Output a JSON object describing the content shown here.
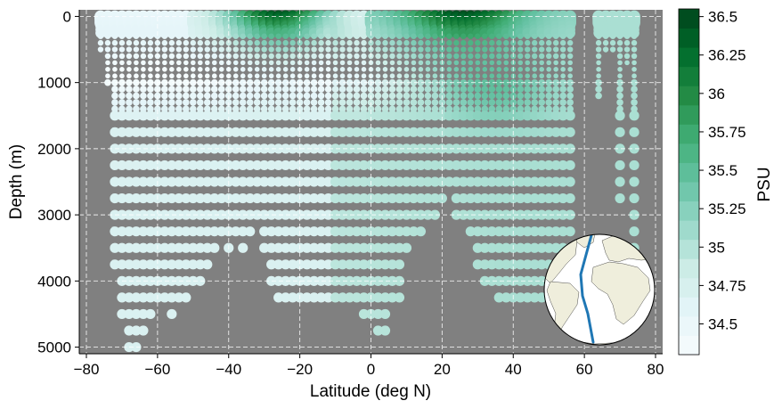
{
  "chart_data": {
    "type": "scatter",
    "title": "",
    "xlabel": "Latitude (deg N)",
    "ylabel": "Depth (m)",
    "xlim": [
      -82,
      82
    ],
    "ylim": [
      5100,
      -100
    ],
    "y_inverted": true,
    "grid": true,
    "grid_style": "dashed white",
    "background_color": "#808080",
    "xticks": [
      -80,
      -60,
      -40,
      -20,
      0,
      20,
      40,
      60,
      80
    ],
    "xtick_labels": [
      "−80",
      "−60",
      "−40",
      "−20",
      "0",
      "20",
      "40",
      "60",
      "80"
    ],
    "yticks": [
      0,
      1000,
      2000,
      3000,
      4000,
      5000
    ],
    "ytick_labels": [
      "0",
      "1000",
      "2000",
      "3000",
      "4000",
      "5000"
    ],
    "colorbar": {
      "label": "PSU",
      "vmin": 34.3,
      "vmax": 36.55,
      "ticks": [
        34.5,
        34.75,
        35,
        35.25,
        35.5,
        35.75,
        36,
        36.25,
        36.5
      ],
      "tick_labels": [
        "34.5",
        "34.75",
        "35",
        "35.25",
        "35.5",
        "35.75",
        "36",
        "36.25",
        "36.5"
      ],
      "colormap": [
        "#f7fcfd",
        "#e5f5f9",
        "#ccece6",
        "#99d8c9",
        "#66c2a4",
        "#41ae76",
        "#238b45",
        "#006d2c",
        "#00441b"
      ]
    },
    "depth_levels": [
      0,
      10,
      20,
      30,
      50,
      75,
      100,
      125,
      150,
      200,
      250,
      300,
      400,
      500,
      600,
      700,
      800,
      900,
      1000,
      1100,
      1200,
      1300,
      1400,
      1500,
      1750,
      2000,
      2250,
      2500,
      2750,
      3000,
      3250,
      3500,
      3750,
      4000,
      4250,
      4500,
      4750,
      5000
    ],
    "latitude_spacing_deg": 2,
    "profiles": [
      {
        "lat": -76,
        "max_depth": 500
      },
      {
        "lat": -74,
        "max_depth": 1000
      },
      {
        "lat": -72,
        "max_depth": 3750
      },
      {
        "lat": -70,
        "max_depth": 4500
      },
      {
        "lat": -68,
        "max_depth": 5000
      },
      {
        "lat": -66,
        "max_depth": 5000
      },
      {
        "lat": -64,
        "max_depth": 4750
      },
      {
        "lat": -62,
        "max_depth": 4500
      },
      {
        "lat": -60,
        "max_depth": 4250
      },
      {
        "lat": -58,
        "max_depth": 4250
      },
      {
        "lat": -56,
        "max_depth": 4500
      },
      {
        "lat": -54,
        "max_depth": 4250
      },
      {
        "lat": -52,
        "max_depth": 4250
      },
      {
        "lat": -50,
        "max_depth": 4000
      },
      {
        "lat": -48,
        "max_depth": 4000
      },
      {
        "lat": -46,
        "max_depth": 3750
      },
      {
        "lat": -44,
        "max_depth": 3500
      },
      {
        "lat": -42,
        "max_depth": 3250
      },
      {
        "lat": -40,
        "max_depth": 3500
      },
      {
        "lat": -38,
        "max_depth": 3250
      },
      {
        "lat": -36,
        "max_depth": 3500
      },
      {
        "lat": -34,
        "max_depth": 3250
      },
      {
        "lat": -32,
        "max_depth": 3000
      },
      {
        "lat": -30,
        "max_depth": 3500
      },
      {
        "lat": -28,
        "max_depth": 4000
      },
      {
        "lat": -26,
        "max_depth": 4250
      },
      {
        "lat": -24,
        "max_depth": 4250
      },
      {
        "lat": -22,
        "max_depth": 4250
      },
      {
        "lat": -20,
        "max_depth": 4250
      },
      {
        "lat": -18,
        "max_depth": 4250
      },
      {
        "lat": -16,
        "max_depth": 4250
      },
      {
        "lat": -14,
        "max_depth": 4250
      },
      {
        "lat": -12,
        "max_depth": 4250
      },
      {
        "lat": -10,
        "max_depth": 4250
      },
      {
        "lat": -8,
        "max_depth": 4250
      },
      {
        "lat": -6,
        "max_depth": 4250
      },
      {
        "lat": -4,
        "max_depth": 4250
      },
      {
        "lat": -2,
        "max_depth": 4500
      },
      {
        "lat": 0,
        "max_depth": 4500
      },
      {
        "lat": 2,
        "max_depth": 4750
      },
      {
        "lat": 4,
        "max_depth": 4750
      },
      {
        "lat": 6,
        "max_depth": 4250
      },
      {
        "lat": 8,
        "max_depth": 4250
      },
      {
        "lat": 10,
        "max_depth": 3500
      },
      {
        "lat": 12,
        "max_depth": 3250
      },
      {
        "lat": 14,
        "max_depth": 3250
      },
      {
        "lat": 16,
        "max_depth": 3000
      },
      {
        "lat": 18,
        "max_depth": 3000
      },
      {
        "lat": 20,
        "max_depth": 2750
      },
      {
        "lat": 22,
        "max_depth": 2500
      },
      {
        "lat": 24,
        "max_depth": 3000
      },
      {
        "lat": 26,
        "max_depth": 3000
      },
      {
        "lat": 28,
        "max_depth": 3250
      },
      {
        "lat": 30,
        "max_depth": 3750
      },
      {
        "lat": 32,
        "max_depth": 4000
      },
      {
        "lat": 34,
        "max_depth": 4000
      },
      {
        "lat": 36,
        "max_depth": 4250
      },
      {
        "lat": 38,
        "max_depth": 4250
      },
      {
        "lat": 40,
        "max_depth": 4250
      },
      {
        "lat": 42,
        "max_depth": 4250
      },
      {
        "lat": 44,
        "max_depth": 4250
      },
      {
        "lat": 46,
        "max_depth": 4250
      },
      {
        "lat": 48,
        "max_depth": 4250
      },
      {
        "lat": 50,
        "max_depth": 4250
      },
      {
        "lat": 52,
        "max_depth": 4250
      },
      {
        "lat": 54,
        "max_depth": 3750
      },
      {
        "lat": 56,
        "max_depth": 3500
      },
      {
        "lat": 64,
        "max_depth": 1250
      },
      {
        "lat": 66,
        "max_depth": 500
      },
      {
        "lat": 68,
        "max_depth": 500
      },
      {
        "lat": 70,
        "max_depth": 2750
      },
      {
        "lat": 72,
        "max_depth": 750
      },
      {
        "lat": 74,
        "max_depth": 3500
      }
    ],
    "salinity_model": {
      "surface_max": {
        "lat": 26,
        "value": 36.5
      },
      "surface_secondary_max": {
        "lat": -26,
        "value": 36.3
      },
      "southern_surface": 34.5,
      "intermediate_water": 34.65,
      "deep_south": 34.7,
      "deep_north": 35.05,
      "nordic_seas": 35.05
    },
    "inset_map": {
      "shape": "circle",
      "ocean_color": "#ffffff",
      "land_color": "#efeedc",
      "track_color": "#1f77b4"
    }
  }
}
